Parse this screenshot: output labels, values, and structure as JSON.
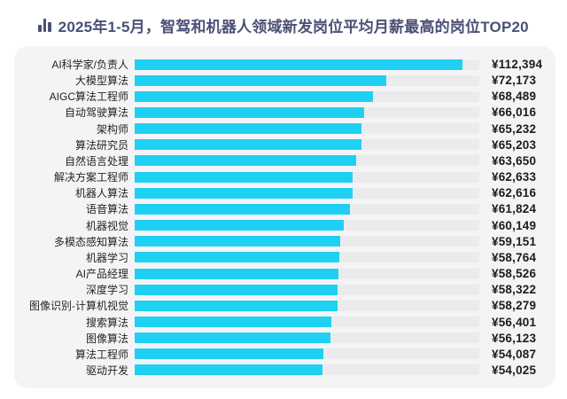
{
  "header": {
    "icon": "bar-chart-icon",
    "title": "2025年1-5月，智驾和机器人领域新发岗位平均月薪最高的岗位TOP20"
  },
  "colors": {
    "title": "#4a5176",
    "card_bg": "#f4f4f6",
    "bar": "#1ed0f2",
    "track": "#ebebed",
    "label": "#242424",
    "value": "#1c1c1c",
    "page_bg": "#ffffff"
  },
  "chart_data": {
    "type": "bar",
    "orientation": "horizontal",
    "title": "2025年1-5月，智驾和机器人领域新发岗位平均月薪最高的岗位TOP20",
    "xlabel": "",
    "ylabel": "",
    "grid": false,
    "legend": false,
    "xlim": [
      0,
      99000
    ],
    "bar_cap_percent": 95.2,
    "categories": [
      "AI科学家/负责人",
      "大模型算法",
      "AIGC算法工程师",
      "自动驾驶算法",
      "架构师",
      "算法研究员",
      "自然语言处理",
      "解决方案工程师",
      "机器人算法",
      "语音算法",
      "机器视觉",
      "多模态感知算法",
      "机器学习",
      "AI产品经理",
      "深度学习",
      "图像识别-计算机视觉",
      "搜索算法",
      "图像算法",
      "算法工程师",
      "驱动开发"
    ],
    "values": [
      112394,
      72173,
      68489,
      66016,
      65232,
      65203,
      63650,
      62633,
      62616,
      61824,
      60149,
      59151,
      58764,
      58526,
      58322,
      58279,
      56401,
      56123,
      54087,
      54025
    ],
    "value_labels": [
      "¥112,394",
      "¥72,173",
      "¥68,489",
      "¥66,016",
      "¥65,232",
      "¥65,203",
      "¥63,650",
      "¥62,633",
      "¥62,616",
      "¥61,824",
      "¥60,149",
      "¥59,151",
      "¥58,764",
      "¥58,526",
      "¥58,322",
      "¥58,279",
      "¥56,401",
      "¥56,123",
      "¥54,087",
      "¥54,025"
    ]
  }
}
